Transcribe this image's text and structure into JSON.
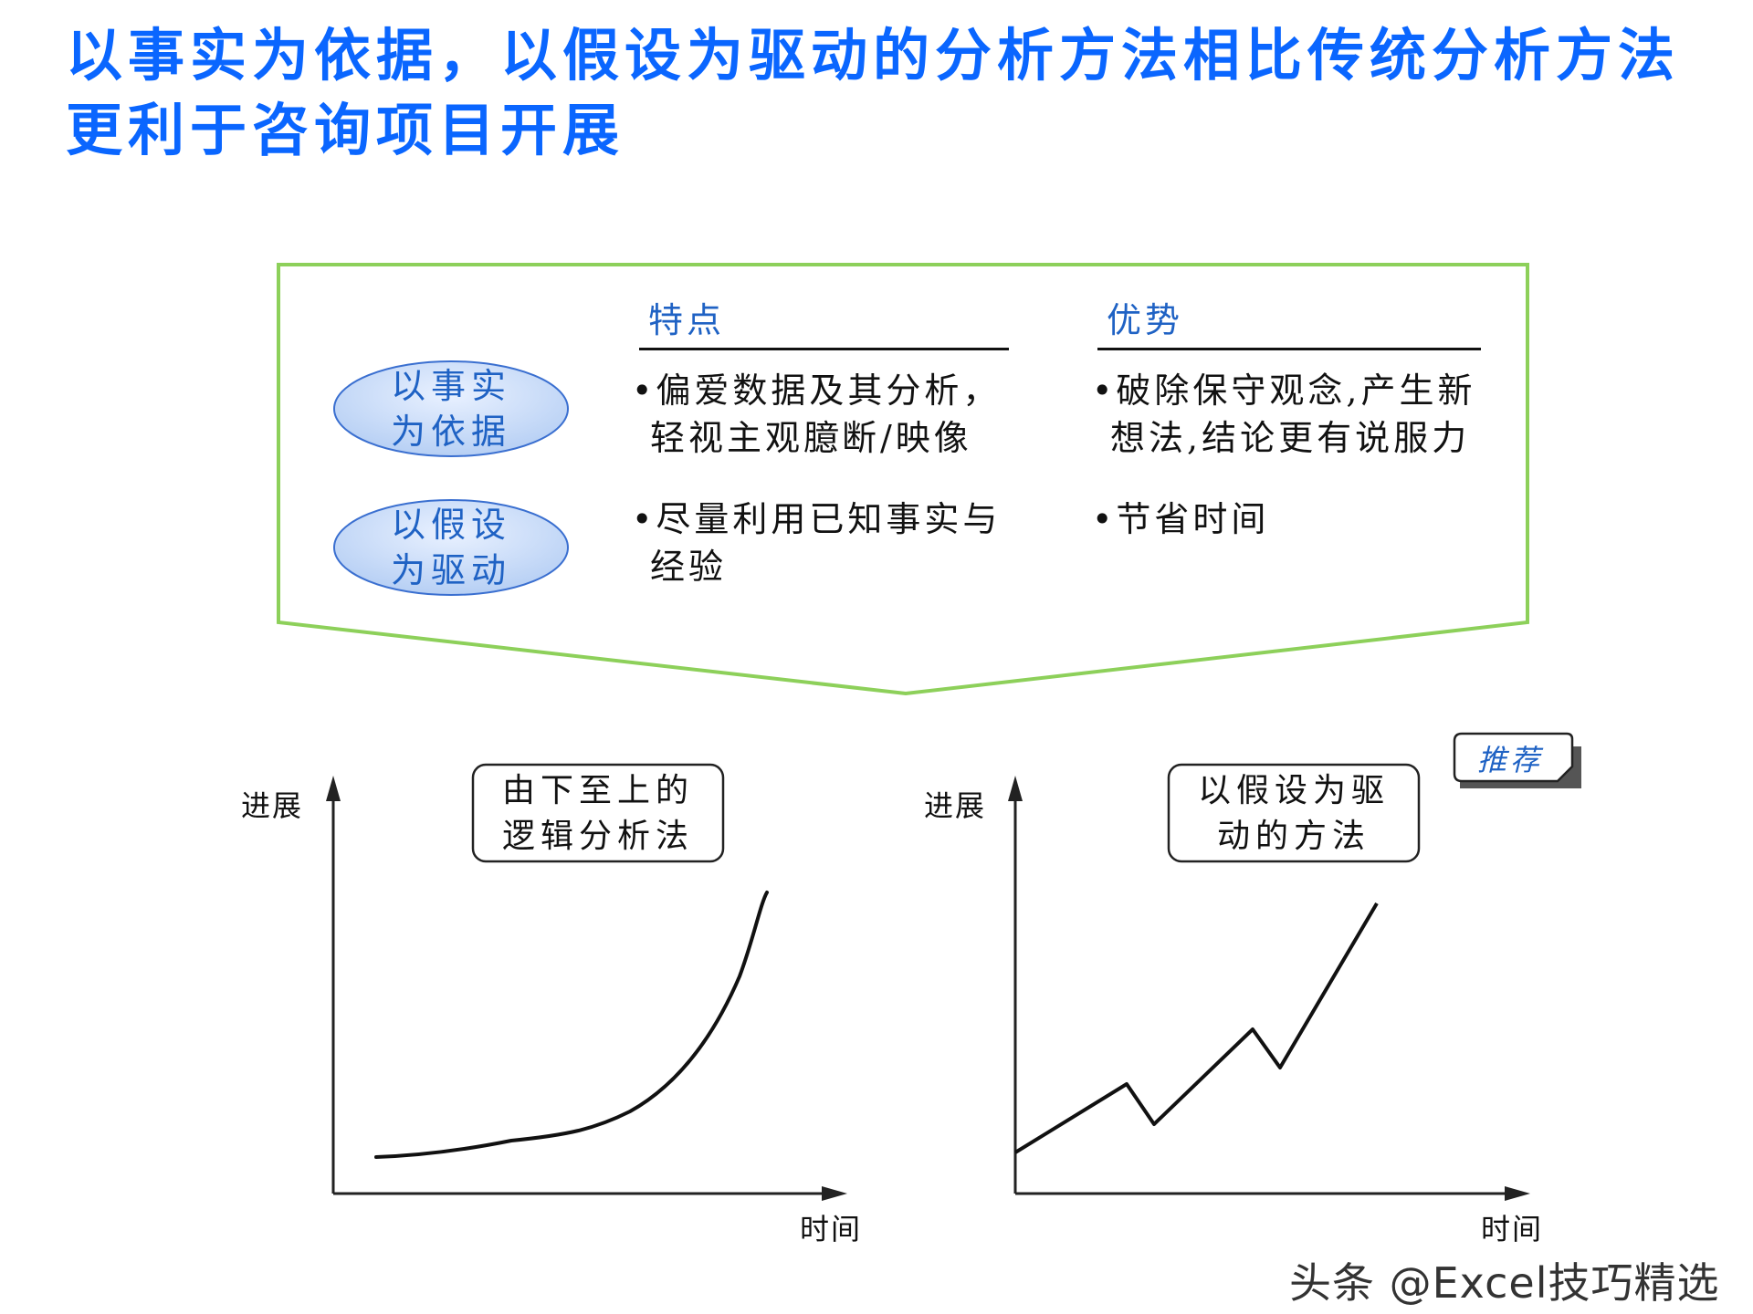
{
  "title": "以事实为依据，以假设为驱动的分析方法相比传统分析方法更利于咨询项目开展",
  "table": {
    "col_feature": "特点",
    "col_advantage": "优势",
    "rows": [
      {
        "name": "以事实为依据",
        "feature": "•偏爱数据及其分析，轻视主观臆断/映像",
        "advantage": "•破除保守观念,产生新想法,结论更有说服力"
      },
      {
        "name": "以假设为驱动",
        "feature": "•尽量利用已知事实与经验",
        "advantage": "•节省时间"
      }
    ]
  },
  "charts": {
    "left": {
      "label": "由下至上的逻辑分析法",
      "y_axis": "进展",
      "x_axis": "时间",
      "trend": "smooth exponential rise"
    },
    "right": {
      "label": "以假设为驱动的方法",
      "y_axis": "进展",
      "x_axis": "时间",
      "trend": "zigzag rise",
      "badge": "推荐"
    }
  },
  "watermark": "头条 @Excel技巧精选",
  "colors": {
    "title": "#0a66ff",
    "frame": "#8dd05a",
    "oval_fill": "#c9dcf8",
    "oval_stroke": "#3a6fd0",
    "label_blue": "#1f62c4"
  }
}
